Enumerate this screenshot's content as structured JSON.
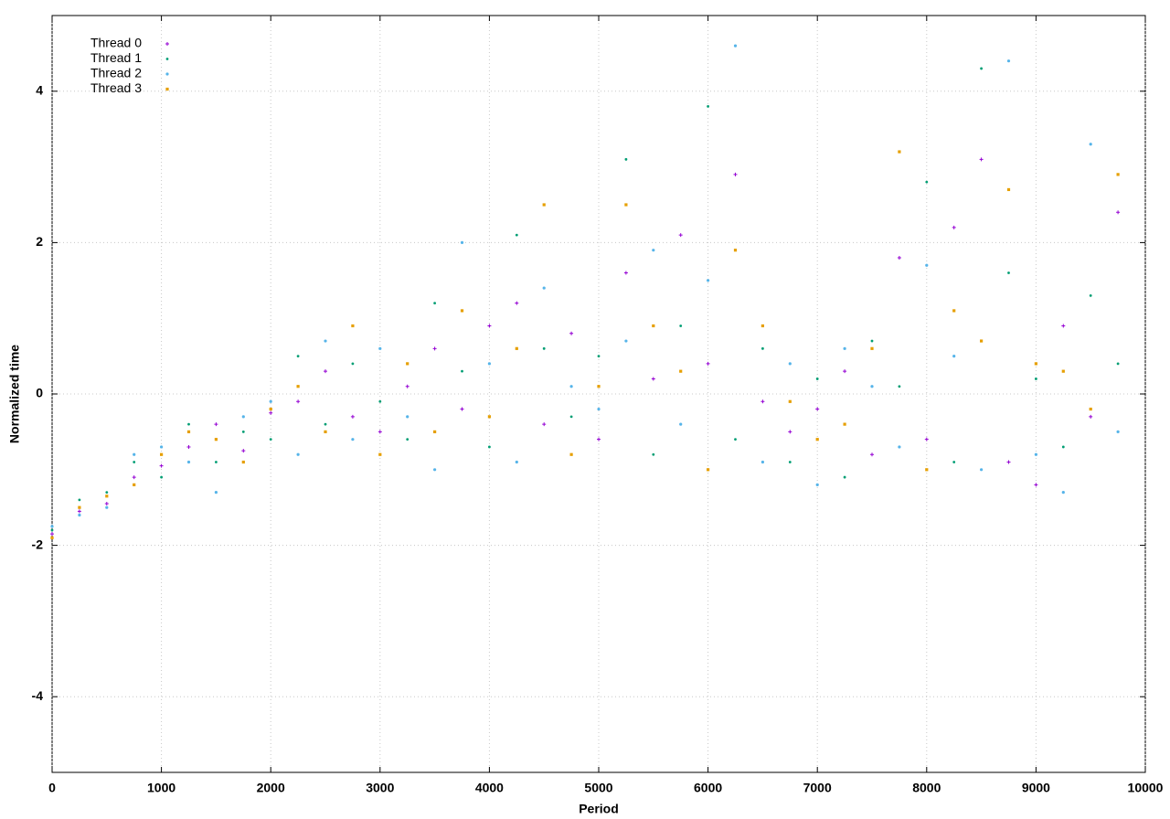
{
  "chart_data": {
    "type": "scatter",
    "x_label": "Period",
    "y_label": "Normalized time",
    "xlim": [
      0,
      10000
    ],
    "xticks": [
      0,
      1000,
      2000,
      3000,
      4000,
      5000,
      6000,
      7000,
      8000,
      9000,
      10000
    ],
    "ylim": [
      -5,
      5
    ],
    "yticks": [
      -4,
      -2,
      0,
      2,
      4
    ],
    "grid": true,
    "legend": "top-left",
    "x": [
      0,
      250,
      500,
      750,
      1000,
      1250,
      1500,
      1750,
      2000,
      2250,
      2500,
      2750,
      3000,
      3250,
      3500,
      3750,
      4000,
      4250,
      4500,
      4750,
      5000,
      5250,
      5500,
      5750,
      6000,
      6250,
      6500,
      6750,
      7000,
      7250,
      7500,
      7750,
      8000,
      8250,
      8500,
      8750,
      9000,
      9250,
      9500,
      9750
    ],
    "series": [
      {
        "name": "Thread 0",
        "color": "#9400d3",
        "values": [
          -1.85,
          -1.55,
          -1.45,
          -1.1,
          -0.95,
          -0.7,
          -0.4,
          -0.75,
          -0.25,
          -0.1,
          0.3,
          -0.3,
          -0.5,
          0.1,
          0.6,
          -0.2,
          0.9,
          1.2,
          -0.4,
          0.8,
          -0.6,
          1.6,
          0.2,
          2.1,
          0.4,
          2.9,
          -0.1,
          -0.5,
          -0.2,
          0.3,
          -0.8,
          1.8,
          -0.6,
          2.2,
          3.1,
          -0.9,
          -1.2,
          0.9,
          -0.3,
          2.4
        ]
      },
      {
        "name": "Thread 1",
        "color": "#009e73",
        "values": [
          -1.8,
          -1.4,
          -1.3,
          -0.9,
          -1.1,
          -0.4,
          -0.9,
          -0.5,
          -0.6,
          0.5,
          -0.4,
          0.4,
          -0.1,
          -0.6,
          1.2,
          0.3,
          -0.7,
          2.1,
          0.6,
          -0.3,
          0.5,
          3.1,
          -0.8,
          0.9,
          3.8,
          -0.6,
          0.6,
          -0.9,
          0.2,
          -1.1,
          0.7,
          0.1,
          2.8,
          -0.9,
          4.3,
          1.6,
          0.2,
          -0.7,
          1.3,
          0.4
        ]
      },
      {
        "name": "Thread 2",
        "color": "#56b4e9",
        "values": [
          -1.75,
          -1.6,
          -1.5,
          -0.8,
          -0.7,
          -0.9,
          -1.3,
          -0.3,
          -0.1,
          -0.8,
          0.7,
          -0.6,
          0.6,
          -0.3,
          -1.0,
          2.0,
          0.4,
          -0.9,
          1.4,
          0.1,
          -0.2,
          0.7,
          1.9,
          -0.4,
          1.5,
          4.6,
          -0.9,
          0.4,
          -1.2,
          0.6,
          0.1,
          -0.7,
          1.7,
          0.5,
          -1.0,
          4.4,
          -0.8,
          -1.3,
          3.3,
          -0.5
        ]
      },
      {
        "name": "Thread 3",
        "color": "#e69f00",
        "values": [
          -1.9,
          -1.5,
          -1.35,
          -1.2,
          -0.8,
          -0.5,
          -0.6,
          -0.9,
          -0.2,
          0.1,
          -0.5,
          0.9,
          -0.8,
          0.4,
          -0.5,
          1.1,
          -0.3,
          0.6,
          2.5,
          -0.8,
          0.1,
          2.5,
          0.9,
          0.3,
          -1.0,
          1.9,
          0.9,
          -0.1,
          -0.6,
          -0.4,
          0.6,
          3.2,
          -1.0,
          1.1,
          0.7,
          2.7,
          0.4,
          0.3,
          -0.2,
          2.9
        ]
      }
    ]
  }
}
